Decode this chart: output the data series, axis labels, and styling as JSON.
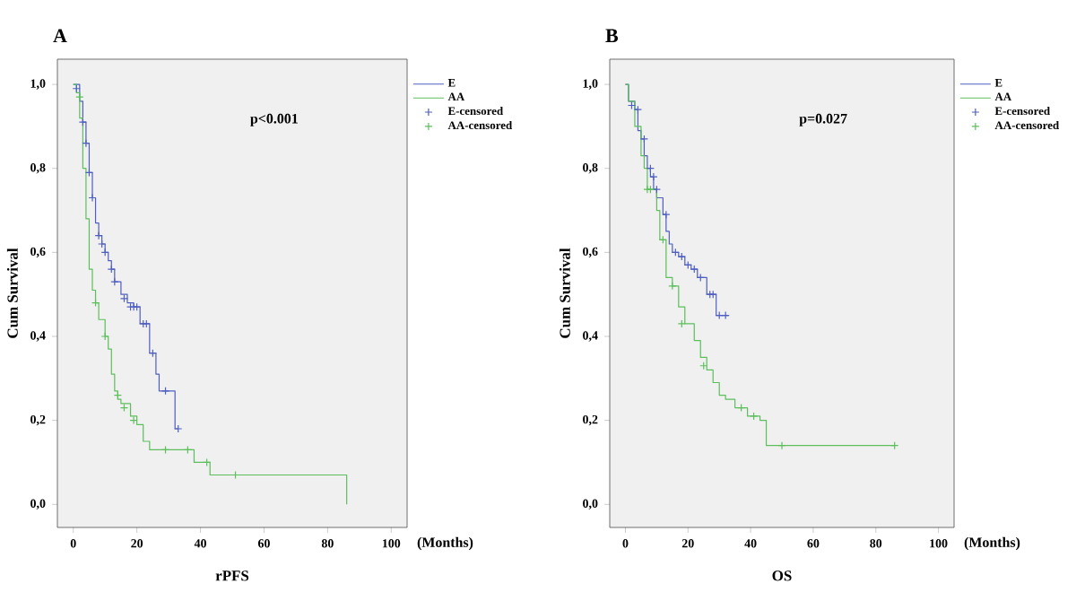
{
  "chart_data": [
    {
      "type": "step",
      "title": "A",
      "xlabel": "rPFS",
      "ylabel": "Cum Survival",
      "annotations": [
        "p<0.001",
        "(Months)"
      ],
      "legend": "right",
      "xlim": [
        -5,
        105
      ],
      "ylim": [
        -0.055,
        1.06
      ],
      "xticks": [
        0,
        20,
        40,
        60,
        80,
        100
      ],
      "yticks": [
        {
          "value": 0,
          "label": "0,0"
        },
        {
          "value": 0.2,
          "label": "0,2"
        },
        {
          "value": 0.4,
          "label": "0,4"
        },
        {
          "value": 0.6,
          "label": "0,6"
        },
        {
          "value": 0.8,
          "label": "0,8"
        },
        {
          "value": 1,
          "label": "1,0"
        }
      ],
      "series": [
        {
          "name": "E",
          "color": "#4f5fc0",
          "x": [
            0,
            2,
            3,
            4,
            5,
            6,
            7,
            8,
            9,
            10,
            11,
            12,
            13,
            15,
            17,
            19,
            21,
            24,
            26,
            27,
            32,
            33
          ],
          "values": [
            1,
            0.96,
            0.91,
            0.86,
            0.79,
            0.73,
            0.67,
            0.64,
            0.62,
            0.6,
            0.58,
            0.56,
            0.53,
            0.5,
            0.48,
            0.47,
            0.43,
            0.36,
            0.31,
            0.27,
            0.18,
            0.18
          ]
        },
        {
          "name": "AA",
          "color": "#5cbf5c",
          "x": [
            0,
            1,
            2,
            3,
            4,
            5,
            6,
            7,
            8,
            10,
            11,
            12,
            13,
            14,
            15,
            18,
            20,
            22,
            24,
            38,
            43,
            86
          ],
          "values": [
            1,
            0.98,
            0.92,
            0.8,
            0.68,
            0.56,
            0.51,
            0.48,
            0.44,
            0.4,
            0.37,
            0.31,
            0.27,
            0.25,
            0.24,
            0.21,
            0.19,
            0.15,
            0.13,
            0.1,
            0.07,
            0
          ]
        },
        {
          "name": "E-censored",
          "type": "scatter",
          "marker": "cross",
          "color": "#4f5fc0",
          "x": [
            1,
            3,
            4,
            5,
            6,
            8,
            9,
            10,
            12,
            13,
            16,
            18,
            19,
            20,
            22,
            23,
            25,
            29,
            33
          ],
          "values": [
            0.99,
            0.91,
            0.86,
            0.79,
            0.73,
            0.64,
            0.62,
            0.6,
            0.56,
            0.53,
            0.49,
            0.47,
            0.47,
            0.47,
            0.43,
            0.43,
            0.36,
            0.27,
            0.18
          ]
        },
        {
          "name": "AA-censored",
          "type": "scatter",
          "marker": "cross",
          "color": "#5cbf5c",
          "x": [
            2,
            7,
            10,
            14,
            16,
            19,
            29,
            36,
            42,
            51
          ],
          "values": [
            0.97,
            0.48,
            0.4,
            0.26,
            0.23,
            0.2,
            0.13,
            0.13,
            0.1,
            0.07
          ]
        }
      ]
    },
    {
      "type": "step",
      "title": "B",
      "xlabel": "OS",
      "ylabel": "Cum Survival",
      "annotations": [
        "p=0.027",
        "(Months)"
      ],
      "legend": "right",
      "xlim": [
        -5,
        105
      ],
      "ylim": [
        -0.055,
        1.06
      ],
      "xticks": [
        0,
        20,
        40,
        60,
        80,
        100
      ],
      "yticks": [
        {
          "value": 0,
          "label": "0,0"
        },
        {
          "value": 0.2,
          "label": "0,2"
        },
        {
          "value": 0.4,
          "label": "0,4"
        },
        {
          "value": 0.6,
          "label": "0,6"
        },
        {
          "value": 0.8,
          "label": "0,8"
        },
        {
          "value": 1,
          "label": "1,0"
        }
      ],
      "series": [
        {
          "name": "E",
          "color": "#4f5fc0",
          "x": [
            0,
            1,
            3,
            4,
            5,
            6,
            7,
            8,
            9,
            10,
            12,
            13,
            14,
            15,
            17,
            19,
            21,
            23,
            26,
            29,
            33
          ],
          "values": [
            1,
            0.96,
            0.94,
            0.89,
            0.87,
            0.83,
            0.8,
            0.78,
            0.75,
            0.73,
            0.69,
            0.65,
            0.62,
            0.6,
            0.59,
            0.57,
            0.56,
            0.54,
            0.5,
            0.45,
            0.45
          ]
        },
        {
          "name": "AA",
          "color": "#5cbf5c",
          "x": [
            0,
            1,
            3,
            5,
            6,
            7,
            10,
            11,
            13,
            15,
            17,
            19,
            22,
            24,
            26,
            28,
            30,
            32,
            35,
            39,
            43,
            45,
            86
          ],
          "values": [
            1,
            0.96,
            0.9,
            0.83,
            0.8,
            0.75,
            0.7,
            0.63,
            0.54,
            0.52,
            0.47,
            0.43,
            0.39,
            0.35,
            0.32,
            0.29,
            0.26,
            0.25,
            0.23,
            0.21,
            0.2,
            0.14,
            0.14
          ]
        },
        {
          "name": "E-censored",
          "type": "scatter",
          "marker": "cross",
          "color": "#4f5fc0",
          "x": [
            2,
            4,
            6,
            8,
            9,
            10,
            13,
            16,
            18,
            20,
            22,
            24,
            27,
            28,
            30,
            32
          ],
          "values": [
            0.95,
            0.94,
            0.87,
            0.8,
            0.78,
            0.75,
            0.69,
            0.6,
            0.59,
            0.57,
            0.56,
            0.54,
            0.5,
            0.5,
            0.45,
            0.45
          ]
        },
        {
          "name": "AA-censored",
          "type": "scatter",
          "marker": "cross",
          "color": "#5cbf5c",
          "x": [
            7,
            8,
            12,
            15,
            18,
            25,
            37,
            41,
            50,
            86
          ],
          "values": [
            0.75,
            0.75,
            0.63,
            0.52,
            0.43,
            0.33,
            0.23,
            0.21,
            0.14,
            0.14
          ]
        }
      ]
    }
  ]
}
